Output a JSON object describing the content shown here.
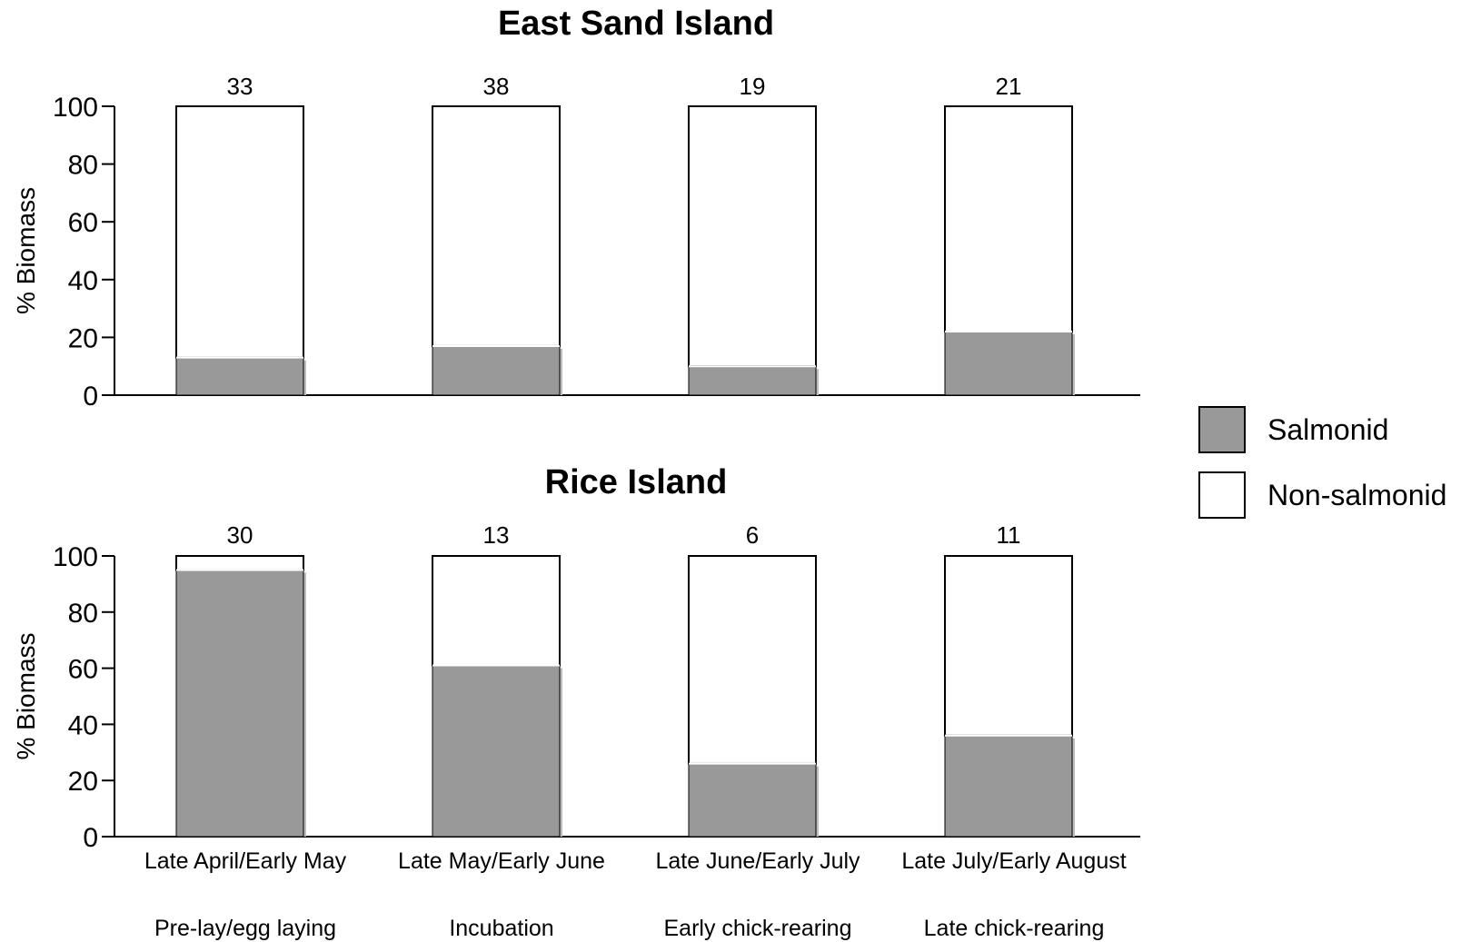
{
  "chart_data": [
    {
      "type": "bar",
      "stacked": true,
      "title": "East Sand Island",
      "ylabel": "% Biomass",
      "ylim": [
        0,
        100
      ],
      "yticks": [
        0,
        20,
        40,
        60,
        80,
        100
      ],
      "categories": [
        "Late April/Early May",
        "Late May/Early June",
        "Late June/Early July",
        "Late July/Early August"
      ],
      "sample_sizes": [
        "33",
        "38",
        "19",
        "21"
      ],
      "series": [
        {
          "name": "Salmonid",
          "values": [
            13,
            17,
            10,
            22
          ]
        },
        {
          "name": "Non-salmonid",
          "values": [
            87,
            83,
            90,
            78
          ]
        }
      ]
    },
    {
      "type": "bar",
      "stacked": true,
      "title": "Rice Island",
      "ylabel": "% Biomass",
      "ylim": [
        0,
        100
      ],
      "yticks": [
        0,
        20,
        40,
        60,
        80,
        100
      ],
      "categories": [
        "Late April/Early May",
        "Late May/Early June",
        "Late June/Early July",
        "Late July/Early August"
      ],
      "sample_sizes": [
        "30",
        "13",
        "6",
        "11"
      ],
      "series": [
        {
          "name": "Salmonid",
          "values": [
            95,
            61,
            26,
            36
          ]
        },
        {
          "name": "Non-salmonid",
          "values": [
            5,
            39,
            74,
            64
          ]
        }
      ]
    }
  ],
  "stages": [
    "Pre-lay/egg laying",
    "Incubation",
    "Early chick-rearing",
    "Late chick-rearing"
  ],
  "legend": {
    "placement": "right",
    "items": [
      {
        "label": "Salmonid",
        "color": "#999999"
      },
      {
        "label": "Non-salmonid",
        "color": "#ffffff"
      }
    ]
  },
  "colors": {
    "salmonid": "#999999",
    "non_salmonid": "#ffffff",
    "axis": "#000000"
  }
}
